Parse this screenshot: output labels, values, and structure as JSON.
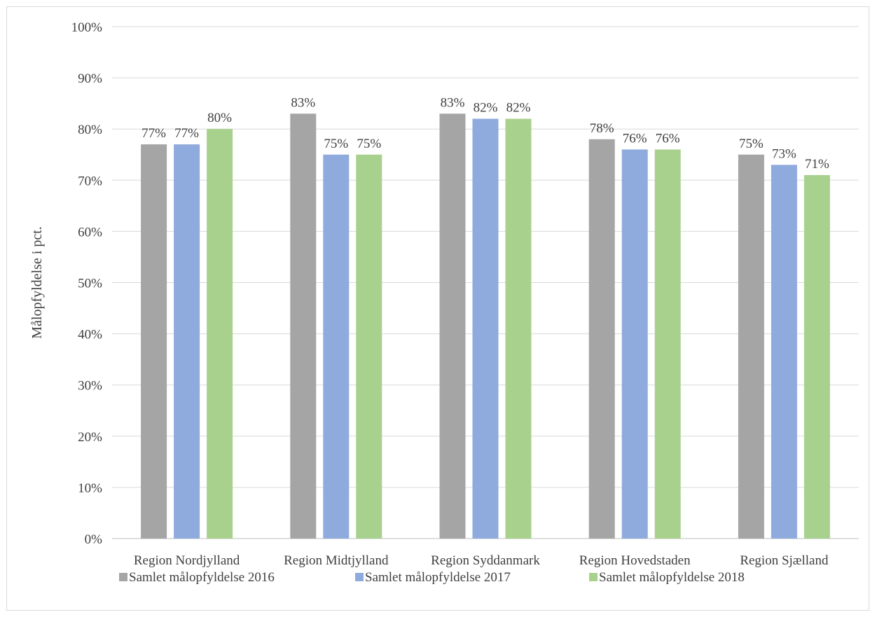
{
  "chart_data": {
    "type": "bar",
    "title": "",
    "xlabel": "",
    "ylabel": "Målopfyldelse i pct.",
    "ylim": [
      0,
      100
    ],
    "yticks": [
      "0%",
      "10%",
      "20%",
      "30%",
      "40%",
      "50%",
      "60%",
      "70%",
      "80%",
      "90%",
      "100%"
    ],
    "grid": true,
    "legend_position": "bottom",
    "categories": [
      "Region Nordjylland",
      "Region Midtjylland",
      "Region Syddanmark",
      "Region Hovedstaden",
      "Region Sjælland"
    ],
    "series": [
      {
        "name": "Samlet målopfyldelse 2016",
        "color": "#a5a5a5",
        "values": [
          77,
          83,
          83,
          78,
          75
        ],
        "labels": [
          "77%",
          "83%",
          "83%",
          "78%",
          "75%"
        ]
      },
      {
        "name": "Samlet målopfyldelse 2017",
        "color": "#8faadc",
        "values": [
          77,
          75,
          82,
          76,
          73
        ],
        "labels": [
          "77%",
          "75%",
          "82%",
          "76%",
          "73%"
        ]
      },
      {
        "name": "Samlet målopfyldelse 2018",
        "color": "#a9d18e",
        "values": [
          80,
          75,
          82,
          76,
          71
        ],
        "labels": [
          "80%",
          "75%",
          "82%",
          "76%",
          "71%"
        ]
      }
    ]
  }
}
